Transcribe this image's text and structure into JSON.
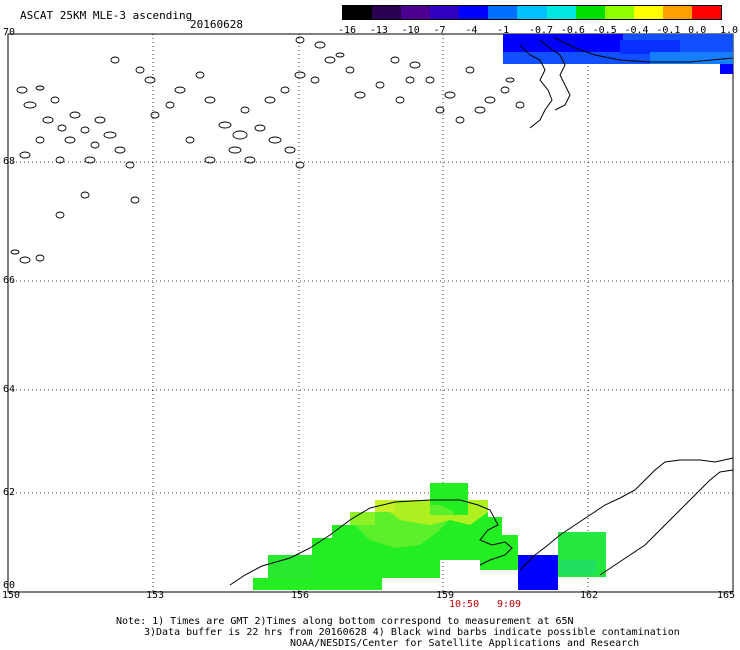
{
  "header": {
    "title": "ASCAT 25KM MLE-3 ascending",
    "date": "20160628"
  },
  "colorbar": {
    "labels": [
      "-16",
      "-13",
      "-10",
      "-7",
      "-4",
      "-1",
      "-0.7",
      "-0.6",
      "-0.5",
      "-0.4",
      "-0.1",
      "0.0",
      "1.0"
    ],
    "colors": [
      "#000000",
      "#2a0050",
      "#4b0090",
      "#3000c0",
      "#0000ff",
      "#0070ff",
      "#00c0ff",
      "#00e8e0",
      "#00e000",
      "#90ff00",
      "#ffff00",
      "#ffa000",
      "#ff0000"
    ]
  },
  "axes": {
    "lat_labels": [
      "70",
      "68",
      "66",
      "64",
      "62",
      "60"
    ],
    "lon_labels": [
      "150",
      "153",
      "156",
      "159",
      "162",
      "165"
    ]
  },
  "times": [
    "10:50",
    "9:09"
  ],
  "notes": [
    "Note: 1) Times are GMT 2)Times along bottom correspond to measurement at 65N",
    "3)Data buffer is 22 hrs from 20160628 4) Black wind barbs indicate possible contamination",
    "NOAA/NESDIS/Center for Satellite Applications and Research"
  ],
  "legend_colors": {
    "green": "#22ee22",
    "lightgreen": "#66ff33",
    "yellowgreen": "#a8f020",
    "blue": "#0000ff",
    "mediumblue": "#1060ff"
  }
}
